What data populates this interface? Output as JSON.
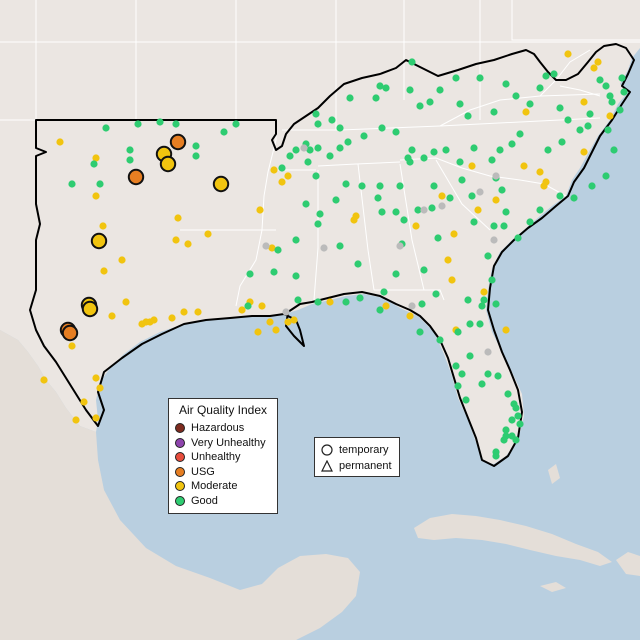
{
  "colors": {
    "water": "#b9cfe0",
    "land": "#ebe6e2",
    "land_alt": "#e4ded8",
    "state_line": "#ffffff",
    "highlight_border": "#000000"
  },
  "legend_aqi": {
    "title": "Air Quality Index",
    "items": [
      {
        "label": "Hazardous",
        "color": "#7e2b1f"
      },
      {
        "label": "Very Unhealthy",
        "color": "#8e44ad"
      },
      {
        "label": "Unhealthy",
        "color": "#e74c3c"
      },
      {
        "label": "USG",
        "color": "#e67e22"
      },
      {
        "label": "Moderate",
        "color": "#f1c40f"
      },
      {
        "label": "Good",
        "color": "#2ecc71"
      }
    ]
  },
  "legend_shapes": {
    "items": [
      {
        "label": "temporary",
        "shape": "circle-icon"
      },
      {
        "label": "permanent",
        "shape": "triangle-icon"
      }
    ]
  }
}
